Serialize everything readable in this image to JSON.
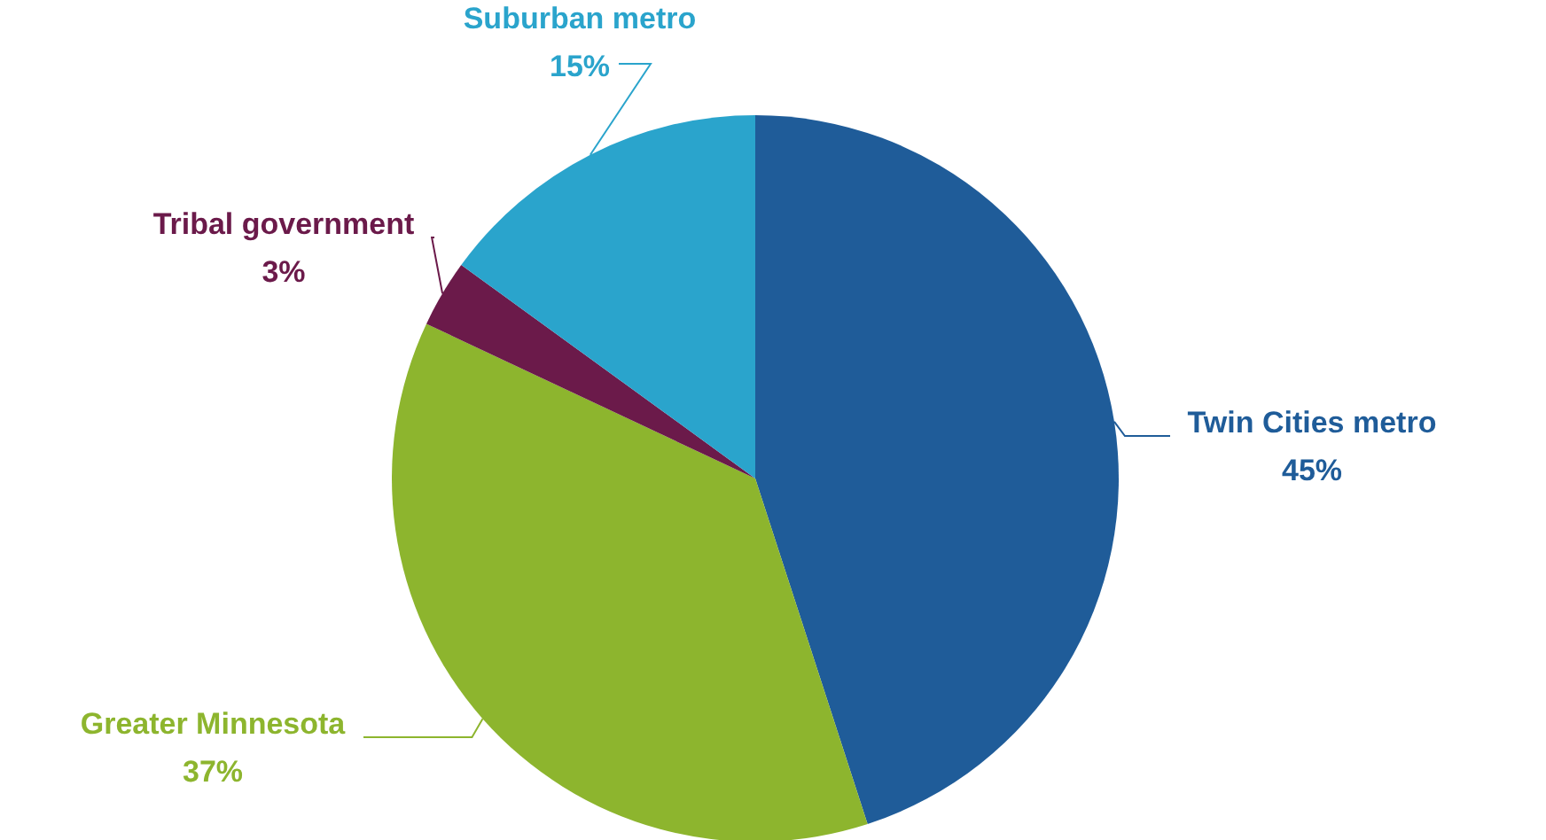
{
  "chart_data": {
    "type": "pie",
    "categories": [
      "Twin Cities metro",
      "Greater Minnesota",
      "Tribal government",
      "Suburban metro"
    ],
    "values": [
      45,
      37,
      3,
      15
    ],
    "colors": [
      "#1f5c99",
      "#8db52e",
      "#6b1a4a",
      "#2aa4cc"
    ],
    "value_labels": [
      "45%",
      "37%",
      "3%",
      "15%"
    ]
  }
}
